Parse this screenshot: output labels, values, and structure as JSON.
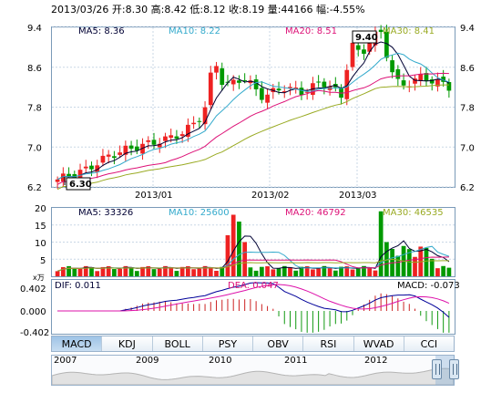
{
  "header": {
    "date": "2013/03/26",
    "open_label": "开:",
    "open": "8.30",
    "high_label": "高:",
    "high": "8.42",
    "low_label": "低:",
    "low": "8.12",
    "close_label": "收:",
    "close": "8.19",
    "volume_label": "量:",
    "volume": "44166",
    "change_label": "幅:",
    "change": "-4.55%"
  },
  "price_panel": {
    "ma5": "MA5: 8.36",
    "ma10": "MA10: 8.22",
    "ma20": "MA20: 8.51",
    "ma30": "MA30: 8.41",
    "max_mark": "9.40",
    "min_mark": "6.30",
    "x_ticks": [
      "2013/01",
      "2013/02",
      "2013/03"
    ]
  },
  "volume_panel": {
    "ma5": "MA5: 33326",
    "ma10": "MA10: 25600",
    "ma20": "MA20: 46792",
    "ma30": "MA30: 46535",
    "unit": "x万",
    "y_ticks": [
      "20",
      "15",
      "10",
      "5"
    ]
  },
  "macd_panel": {
    "dif": "DIF: 0.011",
    "dea": "DEA: 0.047",
    "macd": "MACD: -0.073",
    "y_ticks": [
      "0.402",
      "0.000",
      "-0.402"
    ]
  },
  "tabs": [
    "MACD",
    "KDJ",
    "BOLL",
    "PSY",
    "OBV",
    "RSI",
    "WVAD",
    "CCI"
  ],
  "navigator": {
    "years": [
      "2007",
      "2009",
      "2010",
      "2011",
      "2012"
    ]
  },
  "colors": {
    "up": "#ee2222",
    "down": "#009900",
    "ma5": "#000033",
    "ma10": "#33aacc",
    "ma20": "#dd1177",
    "ma30": "#99aa22",
    "grid": "#7a9ab8"
  },
  "chart_data": {
    "type": "candlestick",
    "ylim": [
      6.2,
      9.4
    ],
    "y_ticks": [
      6.2,
      7.0,
      7.8,
      8.6,
      9.4
    ],
    "bars": 70,
    "high": 9.4,
    "low": 6.3,
    "last": {
      "open": 8.3,
      "high": 8.42,
      "low": 8.12,
      "close": 8.19,
      "volume": 44166
    }
  }
}
